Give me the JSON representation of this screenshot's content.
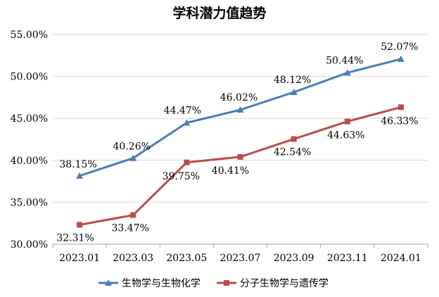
{
  "chart_data": {
    "type": "line",
    "title": "学科潜力值趋势",
    "xlabel": "",
    "ylabel": "",
    "categories": [
      "2023.01",
      "2023.03",
      "2023.05",
      "2023.07",
      "2023.09",
      "2023.11",
      "2024.01"
    ],
    "y_ticks": [
      "30.00%",
      "35.00%",
      "40.00%",
      "45.00%",
      "50.00%",
      "55.00%"
    ],
    "ylim": [
      30,
      55
    ],
    "grid": true,
    "legend_position": "bottom",
    "series": [
      {
        "name": "生物学与生物化学",
        "color": "#4a7ebb",
        "marker": "triangle",
        "values": [
          38.15,
          40.26,
          44.47,
          46.02,
          48.12,
          50.44,
          52.07
        ],
        "labels": [
          "38.15%",
          "40.26%",
          "44.47%",
          "46.02%",
          "48.12%",
          "50.44%",
          "52.07%"
        ]
      },
      {
        "name": "分子生物学与遗传学",
        "color": "#be4b48",
        "marker": "square",
        "values": [
          32.31,
          33.47,
          39.75,
          40.41,
          42.54,
          44.63,
          46.33
        ],
        "labels": [
          "32.31%",
          "33.47%",
          "39.75%",
          "40.41%",
          "42.54%",
          "44.63%",
          "46.33%"
        ]
      }
    ]
  }
}
